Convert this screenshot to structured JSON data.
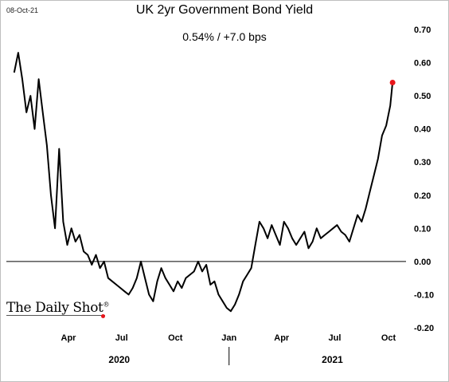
{
  "date_stamp": "08-Oct-21",
  "logo_text": "The Daily Shot",
  "logo_mark": "®",
  "chart_data": {
    "type": "line",
    "title": "UK 2yr Government Bond Yield",
    "subtitle": "0.54%  /  +7.0 bps",
    "ylim": [
      -0.2,
      0.7
    ],
    "y_ticks": [
      "0.70",
      "0.60",
      "0.50",
      "0.40",
      "0.30",
      "0.20",
      "0.10",
      "0.00",
      "-0.10",
      "-0.20"
    ],
    "x_ticks": [
      "Apr",
      "Jul",
      "Oct",
      "Jan",
      "Apr",
      "Jul",
      "Oct"
    ],
    "year_labels": [
      "2020",
      "2021"
    ],
    "reference_line": 0,
    "last_value": 0.54,
    "colors": {
      "line": "#000000",
      "marker": "#e8161b",
      "zero_line": "#000000"
    },
    "series": [
      {
        "x": [
          "2019-12-30",
          "2020-01-06",
          "2020-01-13",
          "2020-01-20",
          "2020-01-27",
          "2020-02-03",
          "2020-02-10",
          "2020-02-17",
          "2020-02-24",
          "2020-03-02",
          "2020-03-09",
          "2020-03-16",
          "2020-03-23",
          "2020-03-30",
          "2020-04-06",
          "2020-04-13",
          "2020-04-20",
          "2020-04-27",
          "2020-05-04",
          "2020-05-11",
          "2020-05-18",
          "2020-05-25",
          "2020-06-01",
          "2020-06-08",
          "2020-06-15",
          "2020-06-22",
          "2020-06-29",
          "2020-07-06",
          "2020-07-13",
          "2020-07-20",
          "2020-07-27",
          "2020-08-03",
          "2020-08-10",
          "2020-08-17",
          "2020-08-24",
          "2020-08-31",
          "2020-09-07",
          "2020-09-14",
          "2020-09-21",
          "2020-09-28",
          "2020-10-05",
          "2020-10-12",
          "2020-10-19",
          "2020-10-26",
          "2020-11-02",
          "2020-11-09",
          "2020-11-16",
          "2020-11-23",
          "2020-11-30",
          "2020-12-07",
          "2020-12-14",
          "2020-12-21",
          "2020-12-28",
          "2021-01-04",
          "2021-01-11",
          "2021-01-18",
          "2021-01-25",
          "2021-02-01",
          "2021-02-08",
          "2021-02-15",
          "2021-02-22",
          "2021-03-01",
          "2021-03-08",
          "2021-03-15",
          "2021-03-22",
          "2021-03-29",
          "2021-04-05",
          "2021-04-12",
          "2021-04-19",
          "2021-04-26",
          "2021-05-03",
          "2021-05-10",
          "2021-05-17",
          "2021-05-24",
          "2021-05-31",
          "2021-06-07",
          "2021-06-14",
          "2021-06-21",
          "2021-06-28",
          "2021-07-05",
          "2021-07-12",
          "2021-07-19",
          "2021-07-26",
          "2021-08-02",
          "2021-08-09",
          "2021-08-16",
          "2021-08-23",
          "2021-08-30",
          "2021-09-06",
          "2021-09-13",
          "2021-09-20",
          "2021-09-27",
          "2021-10-04",
          "2021-10-08"
        ],
        "y": [
          0.57,
          0.63,
          0.55,
          0.45,
          0.5,
          0.4,
          0.55,
          0.45,
          0.35,
          0.2,
          0.1,
          0.34,
          0.12,
          0.05,
          0.1,
          0.06,
          0.08,
          0.03,
          0.02,
          -0.01,
          0.02,
          -0.02,
          0.0,
          -0.05,
          -0.06,
          -0.07,
          -0.08,
          -0.09,
          -0.1,
          -0.08,
          -0.05,
          0.0,
          -0.05,
          -0.1,
          -0.12,
          -0.06,
          -0.02,
          -0.05,
          -0.07,
          -0.09,
          -0.06,
          -0.08,
          -0.05,
          -0.04,
          -0.03,
          0.0,
          -0.03,
          -0.01,
          -0.07,
          -0.06,
          -0.1,
          -0.12,
          -0.14,
          -0.15,
          -0.13,
          -0.1,
          -0.06,
          -0.04,
          -0.02,
          0.05,
          0.12,
          0.1,
          0.07,
          0.11,
          0.08,
          0.05,
          0.12,
          0.1,
          0.07,
          0.05,
          0.07,
          0.09,
          0.04,
          0.06,
          0.1,
          0.07,
          0.08,
          0.09,
          0.1,
          0.11,
          0.09,
          0.08,
          0.06,
          0.1,
          0.14,
          0.12,
          0.16,
          0.21,
          0.26,
          0.31,
          0.38,
          0.41,
          0.47,
          0.54
        ]
      }
    ]
  }
}
